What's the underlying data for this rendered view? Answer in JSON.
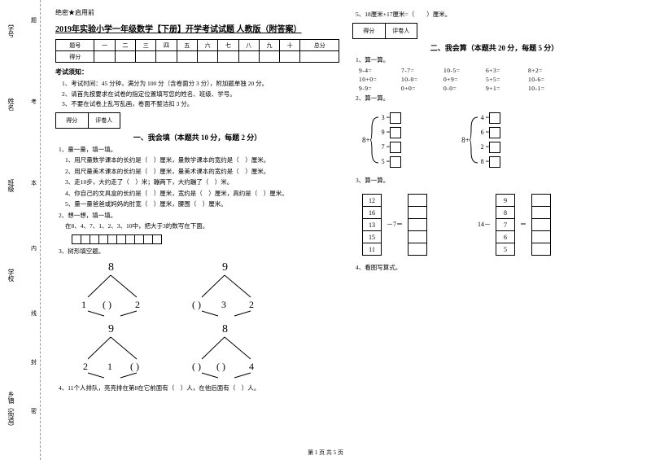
{
  "margin": {
    "labels": [
      "学号",
      "姓名",
      "班级",
      "学校",
      "乡镇（街道）"
    ],
    "dash_labels": [
      "题",
      "考",
      "本",
      "内",
      "线",
      "封",
      "密"
    ]
  },
  "left": {
    "secret": "绝密★启用前",
    "title": "2019年实验小学一年级数学【下册】开学考试试题 人教版（附答案）",
    "score_headers": [
      "题号",
      "一",
      "二",
      "三",
      "四",
      "五",
      "六",
      "七",
      "八",
      "九",
      "十",
      "总分"
    ],
    "score_row2": "得分",
    "notice_title": "考试须知：",
    "notices": [
      "1、考试时间：45 分钟，满分为 100 分（含卷面分 3 分），附加题单独 20 分。",
      "2、请首先按要求在试卷的指定位置填写您的姓名、班级、学号。",
      "3、不要在试卷上乱写乱画，卷面不整洁扣 3 分。"
    ],
    "scorebox": [
      "得分",
      "评卷人"
    ],
    "section1": "一、我会填（本题共 10 分，每题 2 分）",
    "q1": "1、量一量，填一填。",
    "q1_subs": [
      "1、用尺量数学课本的长约是（　）厘米，量数学课本的宽约是（　）厘米。",
      "2、用尺量美术课本的长约是（　）厘米，量美术课本的宽约是（　）厘米。",
      "3、走10步，大约走了（　）米；蹦两下，大约蹦了（　）米。",
      "4、你自己的文具盒的长约是（　）厘米，宽约是（　）厘米，高约是（　）厘米。",
      "5、量一量爸爸或妈妈的肘宽（　）厘米，腰围（　）厘米。"
    ],
    "q2": "2、想一想，填一填。",
    "q2_line": "在8、4、7、1、2、3、10中，把大于3的数写在下面。",
    "q3": "3、树形填空题。",
    "trees": {
      "t1_top": "8",
      "t1_l": "1",
      "t1_m": "( )",
      "t1_r": "2",
      "t2_top": "9",
      "t2_l": "( )",
      "t2_m": "3",
      "t2_r": "2",
      "t3_top": "9",
      "t3_l": "2",
      "t3_m": "1",
      "t3_r": "( )",
      "t4_top": "8",
      "t4_l": "( )",
      "t4_m": "( )",
      "t4_r": "4"
    },
    "q4": "4、11个人排队，亮亮排在第8在它前面有（　）人，在他后面有（　）人。"
  },
  "right": {
    "q5": "5、18厘米+17厘米=（　　）厘米。",
    "scorebox": [
      "得分",
      "评卷人"
    ],
    "section2": "二、我会算（本题共 20 分，每题 5 分）",
    "c1_title": "1、算一算。",
    "c1_rows": [
      [
        "9-4=",
        "7-7=",
        "10-5=",
        "6+3=",
        "8+2="
      ],
      [
        "10+0=",
        "10-0=",
        "0+9=",
        "5+5=",
        "10-6="
      ],
      [
        "9-9=",
        "0+0=",
        "0-0=",
        "9+1=",
        "10-1="
      ]
    ],
    "c2_title": "2、算一算。",
    "bracket1": {
      "left_val": "8+",
      "rows": [
        "3 =",
        "9 =",
        "7 =",
        "5 ="
      ]
    },
    "bracket2": {
      "left_val": "8+",
      "rows": [
        "4 =",
        "6 =",
        "2 =",
        "8 ="
      ]
    },
    "c3_title": "3、算一算。",
    "stack1": {
      "values": [
        "12",
        "16",
        "13",
        "15",
        "11"
      ],
      "op": "－7＝"
    },
    "stack2": {
      "values": [
        "9",
        "8",
        "",
        "6",
        "5"
      ],
      "left": "14－",
      "mid_val": "7",
      "eq": "＝"
    },
    "c4_title": "4、看图写算式。"
  },
  "footer": "第 1 页 共 5 页",
  "colors": {
    "text": "#000000",
    "bg": "#ffffff",
    "dash": "#999999"
  }
}
